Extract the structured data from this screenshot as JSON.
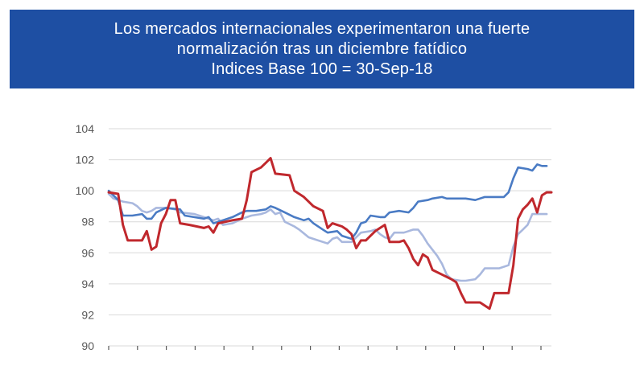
{
  "title": {
    "line1": "Los mercados internacionales experimentaron una fuerte",
    "line2": "normalización tras un diciembre fatídico",
    "line3": "Indices Base 100 = 30-Sep-18"
  },
  "colors": {
    "banner": "#1e4fa3",
    "grid": "#d9d9d9",
    "axis_text": "#595959"
  },
  "chart_data": {
    "type": "line",
    "title": "Indices Base 100 = 30-Sep-18",
    "ylim": [
      90,
      104
    ],
    "yticks": [
      90,
      92,
      94,
      96,
      98,
      100,
      102,
      104
    ],
    "grid": "horizontal",
    "x_tick_count": 16,
    "series": [
      {
        "color": "#c0282d",
        "values": [
          [
            0,
            99.9
          ],
          [
            2,
            99.8
          ],
          [
            3,
            97.8
          ],
          [
            4,
            96.8
          ],
          [
            7,
            96.8
          ],
          [
            8,
            97.4
          ],
          [
            9,
            96.2
          ],
          [
            10,
            96.4
          ],
          [
            11,
            97.9
          ],
          [
            12,
            98.5
          ],
          [
            13,
            99.4
          ],
          [
            14,
            99.4
          ],
          [
            15,
            97.9
          ],
          [
            17,
            97.8
          ],
          [
            20,
            97.6
          ],
          [
            21,
            97.7
          ],
          [
            22,
            97.3
          ],
          [
            23,
            97.9
          ],
          [
            26,
            98.1
          ],
          [
            28,
            98.2
          ],
          [
            29,
            99.4
          ],
          [
            30,
            101.2
          ],
          [
            32,
            101.5
          ],
          [
            33,
            101.8
          ],
          [
            34,
            102.1
          ],
          [
            35,
            101.1
          ],
          [
            38,
            101.0
          ],
          [
            39,
            100.0
          ],
          [
            41,
            99.6
          ],
          [
            43,
            99.0
          ],
          [
            45,
            98.7
          ],
          [
            46,
            97.6
          ],
          [
            47,
            97.9
          ],
          [
            48,
            97.8
          ],
          [
            49,
            97.7
          ],
          [
            50,
            97.5
          ],
          [
            51,
            97.2
          ],
          [
            52,
            96.3
          ],
          [
            53,
            96.8
          ],
          [
            54,
            96.8
          ],
          [
            55,
            97.1
          ],
          [
            56,
            97.4
          ],
          [
            57,
            97.6
          ],
          [
            58,
            97.8
          ],
          [
            59,
            96.7
          ],
          [
            61,
            96.7
          ],
          [
            62,
            96.8
          ],
          [
            63,
            96.3
          ],
          [
            64,
            95.6
          ],
          [
            65,
            95.2
          ],
          [
            66,
            95.9
          ],
          [
            67,
            95.7
          ],
          [
            68,
            94.9
          ],
          [
            70,
            94.6
          ],
          [
            72,
            94.3
          ],
          [
            73,
            94.1
          ],
          [
            74,
            93.4
          ],
          [
            75,
            92.8
          ],
          [
            78,
            92.8
          ],
          [
            79,
            92.6
          ],
          [
            80,
            92.4
          ],
          [
            81,
            93.4
          ],
          [
            84,
            93.4
          ],
          [
            85,
            95.2
          ],
          [
            86,
            98.2
          ],
          [
            87,
            98.8
          ],
          [
            88,
            99.1
          ],
          [
            89,
            99.5
          ],
          [
            90,
            98.6
          ],
          [
            91,
            99.7
          ],
          [
            92,
            99.9
          ],
          [
            93,
            99.9
          ]
        ]
      },
      {
        "color": "#4a7bc4",
        "values": [
          [
            0,
            100.0
          ],
          [
            2,
            99.4
          ],
          [
            3,
            98.4
          ],
          [
            5,
            98.4
          ],
          [
            7,
            98.5
          ],
          [
            8,
            98.2
          ],
          [
            9,
            98.2
          ],
          [
            10,
            98.6
          ],
          [
            12,
            98.9
          ],
          [
            15,
            98.8
          ],
          [
            16,
            98.4
          ],
          [
            20,
            98.2
          ],
          [
            21,
            98.3
          ],
          [
            22,
            97.9
          ],
          [
            24,
            98.1
          ],
          [
            26,
            98.3
          ],
          [
            28,
            98.6
          ],
          [
            29,
            98.7
          ],
          [
            31,
            98.7
          ],
          [
            33,
            98.8
          ],
          [
            34,
            99.0
          ],
          [
            35,
            98.9
          ],
          [
            37,
            98.6
          ],
          [
            39,
            98.3
          ],
          [
            41,
            98.1
          ],
          [
            42,
            98.2
          ],
          [
            43,
            97.9
          ],
          [
            45,
            97.5
          ],
          [
            46,
            97.3
          ],
          [
            48,
            97.4
          ],
          [
            49,
            97.1
          ],
          [
            51,
            96.9
          ],
          [
            52,
            97.3
          ],
          [
            53,
            97.9
          ],
          [
            54,
            98.0
          ],
          [
            55,
            98.4
          ],
          [
            57,
            98.3
          ],
          [
            58,
            98.3
          ],
          [
            59,
            98.6
          ],
          [
            61,
            98.7
          ],
          [
            63,
            98.6
          ],
          [
            64,
            98.9
          ],
          [
            65,
            99.3
          ],
          [
            67,
            99.4
          ],
          [
            68,
            99.5
          ],
          [
            70,
            99.6
          ],
          [
            71,
            99.5
          ],
          [
            73,
            99.5
          ],
          [
            75,
            99.5
          ],
          [
            77,
            99.4
          ],
          [
            79,
            99.6
          ],
          [
            81,
            99.6
          ],
          [
            83,
            99.6
          ],
          [
            84,
            99.9
          ],
          [
            85,
            100.8
          ],
          [
            86,
            101.5
          ],
          [
            88,
            101.4
          ],
          [
            89,
            101.3
          ],
          [
            90,
            101.7
          ],
          [
            91,
            101.6
          ],
          [
            92,
            101.6
          ]
        ]
      },
      {
        "color": "#a9b8de",
        "values": [
          [
            0,
            99.8
          ],
          [
            1,
            99.5
          ],
          [
            2,
            99.4
          ],
          [
            3,
            99.3
          ],
          [
            5,
            99.2
          ],
          [
            6,
            99.0
          ],
          [
            7,
            98.7
          ],
          [
            8,
            98.6
          ],
          [
            9,
            98.7
          ],
          [
            10,
            98.9
          ],
          [
            12,
            98.9
          ],
          [
            14,
            98.8
          ],
          [
            15,
            98.6
          ],
          [
            18,
            98.5
          ],
          [
            20,
            98.3
          ],
          [
            22,
            98.1
          ],
          [
            23,
            98.2
          ],
          [
            24,
            97.8
          ],
          [
            26,
            97.9
          ],
          [
            28,
            98.2
          ],
          [
            30,
            98.4
          ],
          [
            32,
            98.5
          ],
          [
            33,
            98.6
          ],
          [
            34,
            98.8
          ],
          [
            35,
            98.5
          ],
          [
            36,
            98.6
          ],
          [
            37,
            98.0
          ],
          [
            39,
            97.7
          ],
          [
            40,
            97.5
          ],
          [
            42,
            97.0
          ],
          [
            44,
            96.8
          ],
          [
            46,
            96.6
          ],
          [
            47,
            96.9
          ],
          [
            48,
            97.0
          ],
          [
            49,
            96.7
          ],
          [
            51,
            96.7
          ],
          [
            52,
            97.0
          ],
          [
            53,
            97.3
          ],
          [
            55,
            97.4
          ],
          [
            56,
            97.5
          ],
          [
            57,
            97.2
          ],
          [
            58,
            97.0
          ],
          [
            59,
            96.9
          ],
          [
            60,
            97.3
          ],
          [
            62,
            97.3
          ],
          [
            63,
            97.4
          ],
          [
            64,
            97.5
          ],
          [
            65,
            97.5
          ],
          [
            66,
            97.1
          ],
          [
            67,
            96.6
          ],
          [
            68,
            96.2
          ],
          [
            69,
            95.8
          ],
          [
            70,
            95.3
          ],
          [
            71,
            94.6
          ],
          [
            72,
            94.3
          ],
          [
            74,
            94.2
          ],
          [
            75,
            94.2
          ],
          [
            77,
            94.3
          ],
          [
            78,
            94.6
          ],
          [
            79,
            95.0
          ],
          [
            81,
            95.0
          ],
          [
            82,
            95.0
          ],
          [
            84,
            95.2
          ],
          [
            85,
            96.4
          ],
          [
            86,
            97.2
          ],
          [
            87,
            97.5
          ],
          [
            88,
            97.8
          ],
          [
            89,
            98.5
          ],
          [
            92,
            98.5
          ]
        ]
      }
    ]
  }
}
